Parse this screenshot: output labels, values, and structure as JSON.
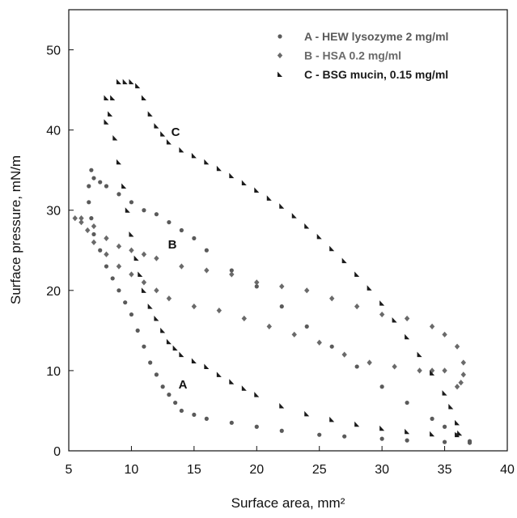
{
  "chart_data": {
    "type": "scatter",
    "x_label": "Surface area, mm²",
    "y_label": "Surface pressure, mN/m",
    "xlim": [
      5,
      40
    ],
    "xticks": [
      5,
      10,
      15,
      20,
      25,
      30,
      35,
      40
    ],
    "ylim": [
      0,
      55
    ],
    "yticks": [
      0,
      10,
      20,
      30,
      40,
      50
    ],
    "grid": false,
    "legend": "upper right",
    "annotations": [
      "C",
      "B",
      "A"
    ],
    "series": [
      {
        "name": "A - HEW lysozyme 2 mg/ml",
        "color": "#5a5a5a",
        "marker": "circle",
        "x": [
          37,
          35,
          32,
          30,
          27,
          25,
          22,
          20,
          18,
          16,
          15,
          14,
          13.5,
          13,
          12.5,
          12,
          11.5,
          11,
          10.5,
          10,
          9.5,
          9,
          8.5,
          8,
          7.5,
          7,
          6.8,
          6.6,
          6.6,
          6.8,
          7,
          7.5,
          8,
          9,
          10,
          11,
          12,
          13,
          14,
          15,
          16,
          18,
          20,
          22,
          24,
          26,
          28,
          30,
          32,
          34,
          35,
          36,
          37
        ],
        "y": [
          1,
          1.1,
          1.3,
          1.5,
          1.8,
          2,
          2.5,
          3,
          3.5,
          4,
          4.5,
          5,
          6,
          7,
          8,
          9.5,
          11,
          13,
          15,
          17,
          18.5,
          20,
          21.5,
          23,
          25,
          27,
          29,
          31,
          33,
          35,
          34,
          33.5,
          33,
          32,
          31,
          30,
          29.5,
          28.5,
          27.5,
          26.5,
          25,
          22.5,
          20.5,
          18,
          15.5,
          13,
          10.5,
          8,
          6,
          4,
          3,
          2,
          1.2
        ]
      },
      {
        "name": "B - HSA 0.2 mg/ml",
        "color": "#6a6a6a",
        "marker": "diamond",
        "x": [
          36,
          35,
          34,
          33,
          31,
          29,
          27,
          25,
          23,
          21,
          19,
          17,
          15,
          13,
          12,
          11,
          10,
          9,
          8,
          7,
          6.5,
          6,
          5.5,
          6,
          7,
          8,
          9,
          10,
          11,
          12,
          14,
          16,
          18,
          20,
          22,
          24,
          26,
          28,
          30,
          32,
          34,
          35,
          36,
          36.5,
          36.5,
          36.3
        ],
        "y": [
          8,
          10,
          10,
          10,
          10.5,
          11,
          12,
          13.5,
          14.5,
          15.5,
          16.5,
          17.5,
          18,
          19,
          20,
          21,
          22,
          23,
          24.5,
          26,
          27.5,
          28.5,
          29,
          29,
          28,
          26.5,
          25.5,
          25,
          24.5,
          24,
          23,
          22.5,
          22,
          21,
          20.5,
          20,
          19,
          18,
          17,
          16.5,
          15.5,
          14.5,
          13,
          11,
          9.5,
          8.5
        ]
      },
      {
        "name": "C - BSG mucin, 0.15 mg/ml",
        "color": "#1a1a1a",
        "marker": "triangle",
        "x": [
          36,
          34,
          32,
          30,
          28,
          26,
          24,
          22,
          20,
          19,
          18,
          17,
          16,
          15,
          14,
          13.5,
          13,
          12.5,
          12,
          11.5,
          11,
          10.7,
          10.4,
          10,
          9.7,
          9.4,
          9,
          8.7,
          8.3,
          8,
          8,
          8.5,
          9,
          9.5,
          10,
          10.5,
          11,
          11.5,
          12,
          12.5,
          13,
          14,
          15,
          16,
          17,
          18,
          19,
          20,
          21,
          22,
          23,
          24,
          25,
          26,
          27,
          28,
          29,
          30,
          31,
          32,
          33,
          34,
          35,
          35.5,
          36,
          36.2
        ],
        "y": [
          2,
          2.1,
          2.4,
          2.8,
          3.3,
          3.9,
          4.6,
          5.6,
          7,
          7.8,
          8.6,
          9.5,
          10.5,
          11.2,
          12,
          12.8,
          13.6,
          15,
          16.5,
          18,
          20,
          22,
          24,
          27,
          30,
          33,
          36,
          39,
          42,
          44,
          41,
          44,
          46,
          46,
          46,
          45.5,
          44,
          42,
          40.5,
          39.5,
          38.5,
          37.5,
          36.8,
          36,
          35.2,
          34.3,
          33.4,
          32.5,
          31.5,
          30.5,
          29.3,
          28,
          26.7,
          25.2,
          23.7,
          22,
          20.3,
          18.4,
          16.3,
          14.2,
          12,
          9.7,
          7.2,
          5.5,
          3.5,
          2.2
        ]
      }
    ]
  }
}
